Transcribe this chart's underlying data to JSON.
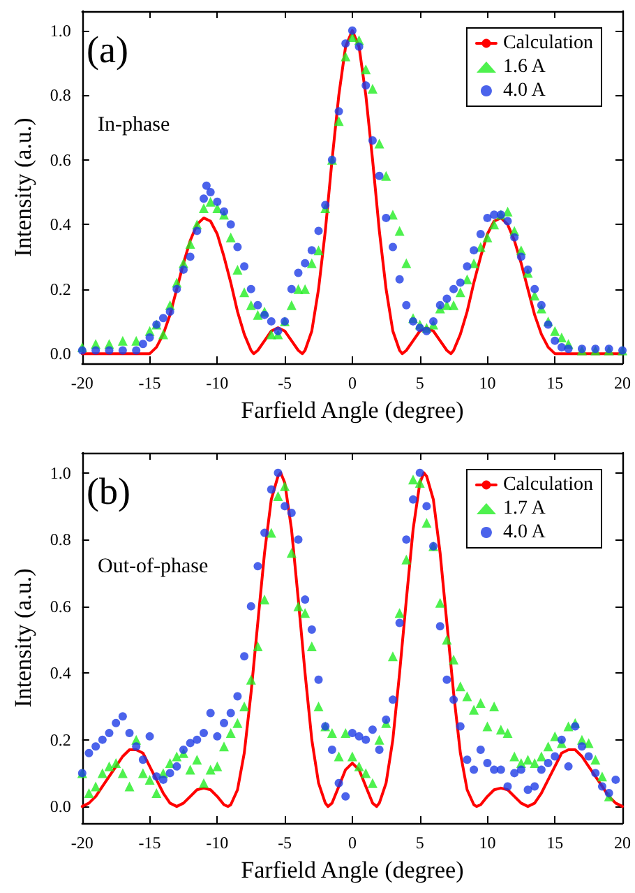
{
  "chart_data": [
    {
      "type": "scatter",
      "xlabel": "Farfield Angle (degree)",
      "ylabel": "Intensity (a.u.)",
      "annotations": [
        "(a)",
        "In-phase"
      ],
      "xlim": [
        -20,
        20
      ],
      "xticks": [
        -20,
        -15,
        -10,
        -5,
        0,
        5,
        10,
        15,
        20
      ],
      "ylim": [
        -0.03,
        1.06
      ],
      "yticks": [
        {
          "value": 0,
          "label": "0.0"
        },
        {
          "value": 0.2,
          "label": "0.2"
        },
        {
          "value": 0.4,
          "label": "0.4"
        },
        {
          "value": 0.6,
          "label": "0.6"
        },
        {
          "value": 0.8,
          "label": "0.8"
        },
        {
          "value": 1,
          "label": "1.0"
        }
      ],
      "grid": false,
      "legend": "top right",
      "series": [
        {
          "name": "Calculation",
          "type": "line",
          "marker": "none",
          "line_style": "solid",
          "color": "#ff0000",
          "x": [
            -20,
            -18,
            -16,
            -15.5,
            -15,
            -14.5,
            -14,
            -13.5,
            -13,
            -12.5,
            -12,
            -11.5,
            -11,
            -10.5,
            -10,
            -9.5,
            -9,
            -8.5,
            -8,
            -7.5,
            -7.3,
            -7,
            -6.5,
            -6,
            -5.5,
            -5,
            -4.5,
            -4,
            -3.7,
            -3.5,
            -3,
            -2.5,
            -2,
            -1.5,
            -1,
            -0.5,
            0,
            0.5,
            1,
            1.5,
            2,
            2.5,
            3,
            3.5,
            3.7,
            4,
            4.5,
            5,
            5.5,
            6,
            6.5,
            7,
            7.3,
            7.5,
            8,
            8.5,
            9,
            9.5,
            10,
            10.5,
            11,
            11.5,
            12,
            12.5,
            13,
            13.5,
            14,
            14.5,
            15,
            15.5,
            16,
            18,
            20
          ],
          "values": [
            0,
            0,
            0,
            0,
            0,
            0.02,
            0.06,
            0.12,
            0.2,
            0.28,
            0.35,
            0.4,
            0.42,
            0.41,
            0.37,
            0.3,
            0.22,
            0.13,
            0.06,
            0.01,
            0,
            0.01,
            0.04,
            0.07,
            0.08,
            0.07,
            0.04,
            0.01,
            0,
            0.01,
            0.07,
            0.2,
            0.38,
            0.6,
            0.8,
            0.95,
            1,
            0.95,
            0.8,
            0.6,
            0.38,
            0.2,
            0.07,
            0.01,
            0,
            0.01,
            0.04,
            0.07,
            0.08,
            0.07,
            0.04,
            0.01,
            0,
            0.01,
            0.06,
            0.13,
            0.22,
            0.3,
            0.37,
            0.41,
            0.42,
            0.4,
            0.35,
            0.28,
            0.2,
            0.12,
            0.06,
            0.02,
            0,
            0,
            0,
            0,
            0
          ]
        },
        {
          "name": "1.6 A",
          "marker": "triangle",
          "color": "#22ee22",
          "x": [
            -20,
            -19,
            -18,
            -17,
            -16,
            -15,
            -14.5,
            -14,
            -13.5,
            -13,
            -12.5,
            -12,
            -11.5,
            -11,
            -10.5,
            -10,
            -9.5,
            -9,
            -8.5,
            -8,
            -7.5,
            -7,
            -6.5,
            -6,
            -5.5,
            -5,
            -4.5,
            -4,
            -3.5,
            -3,
            -2.5,
            -2,
            -1.5,
            -1,
            -0.5,
            0,
            0.5,
            1,
            1.5,
            2,
            2.5,
            3,
            3.5,
            4,
            4.5,
            5,
            5.5,
            6,
            6.5,
            7,
            7.5,
            8,
            8.5,
            9,
            9.5,
            10,
            10.5,
            11,
            11.5,
            12,
            12.5,
            13,
            13.5,
            14,
            14.5,
            15,
            15.5,
            16,
            17,
            18,
            19,
            20
          ],
          "values": [
            0.02,
            0.03,
            0.03,
            0.04,
            0.04,
            0.07,
            0.09,
            0.06,
            0.15,
            0.22,
            0.28,
            0.34,
            0.4,
            0.45,
            0.47,
            0.45,
            0.43,
            0.36,
            0.26,
            0.19,
            0.15,
            0.12,
            0.13,
            0.06,
            0.06,
            0.1,
            0.15,
            0.2,
            0.2,
            0.28,
            0.32,
            0.45,
            0.6,
            0.72,
            0.92,
            0.98,
            0.97,
            0.88,
            0.82,
            0.65,
            0.55,
            0.43,
            0.38,
            0.28,
            0.11,
            0.09,
            0.08,
            0.09,
            0.14,
            0.15,
            0.15,
            0.19,
            0.23,
            0.28,
            0.33,
            0.36,
            0.4,
            0.43,
            0.44,
            0.38,
            0.32,
            0.25,
            0.18,
            0.14,
            0.1,
            0.07,
            0.05,
            0.03,
            0.01,
            0.01,
            0.01,
            0.01
          ]
        },
        {
          "name": "4.0 A",
          "marker": "circle",
          "color": "#1e3ce6",
          "x": [
            -20,
            -19,
            -18,
            -17,
            -16,
            -15.5,
            -15,
            -14.5,
            -14,
            -13.5,
            -13,
            -12.5,
            -12,
            -11.5,
            -11,
            -10.8,
            -10.5,
            -10,
            -9.5,
            -9,
            -8.5,
            -8,
            -7.5,
            -7,
            -6.5,
            -6,
            -5.5,
            -5,
            -4.5,
            -4,
            -3.5,
            -3,
            -2.5,
            -2,
            -1.5,
            -1,
            -0.5,
            0,
            0.5,
            1,
            1.5,
            2,
            2.5,
            3,
            3.5,
            4,
            4.5,
            5,
            5.5,
            6,
            6.5,
            7,
            7.5,
            8,
            8.5,
            9,
            9.5,
            10,
            10.5,
            11,
            11.5,
            12,
            12.5,
            13,
            13.5,
            14,
            14.5,
            15,
            15.5,
            16,
            17,
            18,
            19,
            20
          ],
          "values": [
            0.01,
            0.01,
            0.01,
            0.01,
            0.01,
            0.03,
            0.05,
            0.09,
            0.11,
            0.13,
            0.2,
            0.26,
            0.3,
            0.38,
            0.48,
            0.52,
            0.5,
            0.47,
            0.44,
            0.4,
            0.33,
            0.27,
            0.2,
            0.15,
            0.12,
            0.1,
            0.07,
            0.1,
            0.2,
            0.25,
            0.28,
            0.32,
            0.38,
            0.46,
            0.6,
            0.75,
            0.96,
            1,
            0.95,
            0.83,
            0.66,
            0.55,
            0.42,
            0.33,
            0.23,
            0.15,
            0.1,
            0.08,
            0.07,
            0.1,
            0.15,
            0.17,
            0.2,
            0.22,
            0.27,
            0.32,
            0.37,
            0.42,
            0.43,
            0.43,
            0.41,
            0.36,
            0.3,
            0.26,
            0.2,
            0.15,
            0.09,
            0.04,
            0.02,
            0.015,
            0.015,
            0.015,
            0.015,
            0.01
          ]
        }
      ]
    },
    {
      "type": "scatter",
      "xlabel": "Farfield Angle (degree)",
      "ylabel": "Intensity (a.u.)",
      "annotations": [
        "(b)",
        "Out-of-phase"
      ],
      "xlim": [
        -20,
        20
      ],
      "xticks": [
        -20,
        -15,
        -10,
        -5,
        0,
        5,
        10,
        15,
        20
      ],
      "ylim": [
        -0.05,
        1.06
      ],
      "yticks": [
        {
          "value": 0,
          "label": "0.0"
        },
        {
          "value": 0.2,
          "label": "0.2"
        },
        {
          "value": 0.4,
          "label": "0.4"
        },
        {
          "value": 0.6,
          "label": "0.6"
        },
        {
          "value": 0.8,
          "label": "0.8"
        },
        {
          "value": 1,
          "label": "1.0"
        }
      ],
      "grid": false,
      "legend": "top right",
      "series": [
        {
          "name": "Calculation",
          "type": "line",
          "marker": "none",
          "line_style": "solid",
          "color": "#ff0000",
          "x": [
            -20,
            -19.5,
            -19,
            -18.5,
            -18,
            -17.5,
            -17,
            -16.5,
            -16,
            -15.5,
            -15,
            -14.5,
            -14,
            -13.5,
            -13,
            -12.5,
            -12,
            -11.5,
            -11,
            -10.5,
            -10,
            -9.5,
            -9.2,
            -9,
            -8.5,
            -8,
            -7.5,
            -7,
            -6.5,
            -6,
            -5.5,
            -5.3,
            -5,
            -4.5,
            -4,
            -3.5,
            -3,
            -2.5,
            -2,
            -1.8,
            -1.5,
            -1,
            -0.5,
            0,
            0.5,
            1,
            1.5,
            1.8,
            2,
            2.5,
            3,
            3.5,
            4,
            4.5,
            5,
            5.3,
            5.5,
            6,
            6.5,
            7,
            7.5,
            8,
            8.5,
            9,
            9.2,
            9.5,
            10,
            10.5,
            11,
            11.5,
            12,
            12.5,
            13,
            13.5,
            14,
            14.5,
            15,
            15.5,
            16,
            16.5,
            17,
            17.5,
            18,
            18.5,
            19,
            19.5,
            20
          ],
          "values": [
            0,
            0.01,
            0.03,
            0.06,
            0.09,
            0.12,
            0.15,
            0.17,
            0.17,
            0.16,
            0.12,
            0.08,
            0.04,
            0.01,
            0,
            0.01,
            0.03,
            0.05,
            0.055,
            0.05,
            0.03,
            0.005,
            0,
            0.005,
            0.05,
            0.16,
            0.34,
            0.55,
            0.76,
            0.92,
            0.99,
            1,
            0.97,
            0.83,
            0.62,
            0.4,
            0.2,
            0.07,
            0.01,
            0,
            0.01,
            0.06,
            0.11,
            0.13,
            0.11,
            0.06,
            0.01,
            0,
            0.01,
            0.07,
            0.2,
            0.4,
            0.62,
            0.83,
            0.97,
            1,
            0.99,
            0.92,
            0.76,
            0.55,
            0.34,
            0.16,
            0.05,
            0.005,
            0,
            0.005,
            0.03,
            0.05,
            0.055,
            0.05,
            0.03,
            0.01,
            0,
            0.01,
            0.04,
            0.08,
            0.12,
            0.16,
            0.17,
            0.17,
            0.15,
            0.12,
            0.09,
            0.06,
            0.03,
            0.01,
            0
          ]
        },
        {
          "name": "1.7 A",
          "marker": "triangle",
          "color": "#22ee22",
          "x": [
            -20,
            -19.5,
            -19,
            -18.5,
            -18,
            -17.5,
            -17,
            -16.5,
            -16,
            -15.5,
            -15,
            -14.5,
            -14,
            -13.5,
            -13,
            -12.5,
            -12,
            -11.5,
            -11,
            -10.5,
            -10,
            -9.5,
            -9,
            -8.5,
            -8,
            -7.5,
            -7,
            -6.5,
            -6,
            -5.5,
            -5,
            -4.5,
            -4,
            -3.5,
            -3,
            -2.5,
            -2,
            -1.5,
            -1,
            -0.5,
            0,
            0.5,
            1,
            1.5,
            2,
            2.5,
            3,
            3.5,
            4,
            4.5,
            5,
            5.5,
            6,
            6.5,
            7,
            7.5,
            8,
            8.5,
            9,
            9.5,
            10,
            10.5,
            11,
            11.5,
            12,
            12.5,
            13,
            13.5,
            14,
            14.5,
            15,
            15.5,
            16,
            16.5,
            17,
            17.5,
            18,
            18.5,
            19
          ],
          "values": [
            0.1,
            0.04,
            0.06,
            0.1,
            0.12,
            0.13,
            0.1,
            0.06,
            0.2,
            0.1,
            0.08,
            0.04,
            0.1,
            0.13,
            0.15,
            0.16,
            0.11,
            0.14,
            0.07,
            0.11,
            0.12,
            0.18,
            0.22,
            0.25,
            0.3,
            0.38,
            0.48,
            0.62,
            0.82,
            0.93,
            0.96,
            0.76,
            0.6,
            0.58,
            0.48,
            0.3,
            0.24,
            0.22,
            0.15,
            0.22,
            0.15,
            0.12,
            0.1,
            0.07,
            0.2,
            0.25,
            0.45,
            0.58,
            0.74,
            0.98,
            0.97,
            0.85,
            0.78,
            0.61,
            0.5,
            0.44,
            0.36,
            0.33,
            0.29,
            0.31,
            0.24,
            0.3,
            0.23,
            0.22,
            0.15,
            0.13,
            0.14,
            0.13,
            0.15,
            0.18,
            0.21,
            0.19,
            0.24,
            0.25,
            0.2,
            0.19,
            0.14,
            0.09,
            0.03
          ]
        },
        {
          "name": "4.0 A",
          "marker": "circle",
          "color": "#1e3ce6",
          "x": [
            -20,
            -19.5,
            -19,
            -18.5,
            -18,
            -17.5,
            -17,
            -16.5,
            -16,
            -15.5,
            -15,
            -14.5,
            -14,
            -13.5,
            -13,
            -12.5,
            -12,
            -11.5,
            -11,
            -10.5,
            -10,
            -9.5,
            -9,
            -8.5,
            -8,
            -7.5,
            -7,
            -6.5,
            -6,
            -5.5,
            -5,
            -4.5,
            -4,
            -3.5,
            -3,
            -2.5,
            -2,
            -1.5,
            -1,
            -0.5,
            0,
            0.5,
            1,
            1.5,
            2,
            2.5,
            3,
            3.5,
            4,
            4.5,
            5,
            5.5,
            6,
            6.5,
            7,
            7.5,
            8,
            8.5,
            9,
            9.5,
            10,
            10.5,
            11,
            11.5,
            12,
            12.5,
            13,
            13.5,
            14,
            14.5,
            15,
            15.5,
            16,
            16.5,
            17,
            17.5,
            18,
            18.5,
            19,
            19.5
          ],
          "values": [
            0.1,
            0.16,
            0.18,
            0.2,
            0.22,
            0.25,
            0.27,
            0.22,
            0.18,
            0.14,
            0.21,
            0.09,
            0.08,
            0.1,
            0.12,
            0.17,
            0.19,
            0.2,
            0.22,
            0.28,
            0.21,
            0.25,
            0.28,
            0.33,
            0.45,
            0.6,
            0.72,
            0.82,
            0.95,
            1,
            0.9,
            0.88,
            0.8,
            0.62,
            0.53,
            0.38,
            0.24,
            0.17,
            0.07,
            0.03,
            0.22,
            0.21,
            0.2,
            0.23,
            0.17,
            0.26,
            0.32,
            0.55,
            0.8,
            0.92,
            1,
            0.9,
            0.78,
            0.54,
            0.38,
            0.32,
            0.24,
            0.14,
            0.11,
            0.17,
            0.13,
            0.11,
            0.11,
            0.06,
            0.1,
            0.11,
            0.05,
            0.06,
            0.11,
            0.13,
            0.15,
            0.2,
            0.12,
            0.24,
            0.18,
            0.15,
            0.1,
            0.06,
            0.04,
            0.08
          ]
        }
      ]
    }
  ]
}
